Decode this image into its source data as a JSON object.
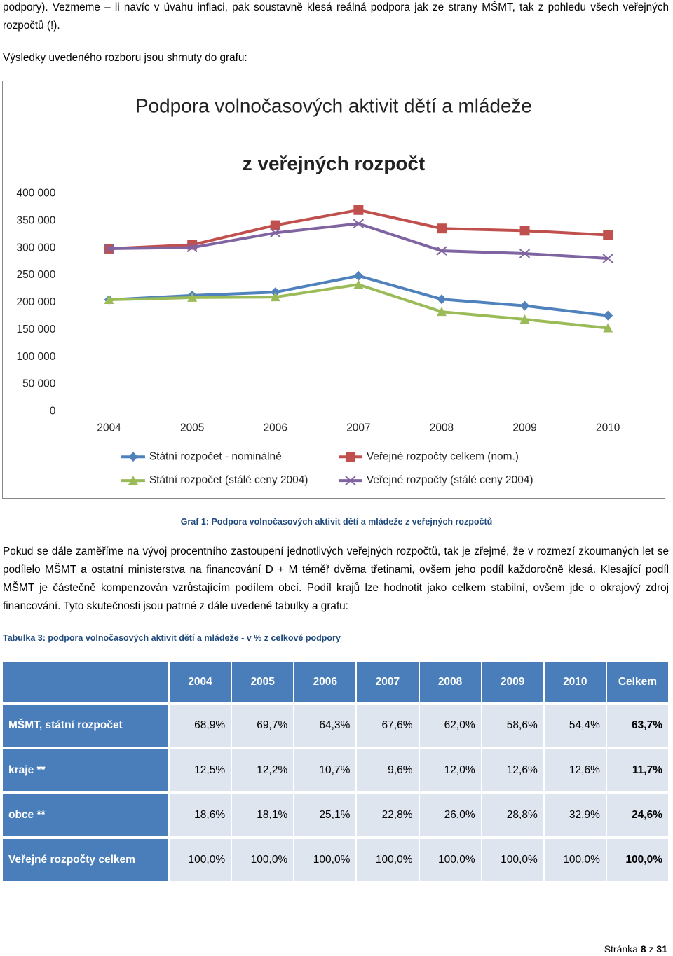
{
  "text": {
    "paragraph_1": "podpory). Vezmeme – li navíc v úvahu inflaci, pak soustavně klesá reálná podpora jak ze strany MŠMT, tak z pohledu všech veřejných rozpočtů (!).",
    "paragraph_2": "Výsledky uvedeného rozboru jsou shrnuty do grafu:",
    "chart_caption": "Graf 1: Podpora volnočasových aktivit dětí a mládeže z veřejných rozpočtů",
    "paragraph_3": "Pokud se dále zaměříme na vývoj procentního zastoupení jednotlivých veřejných rozpočtů, tak je zřejmé, že v rozmezí zkoumaných let se podílelo MŠMT a ostatní ministerstva na financování D + M téměř dvěma třetinami, ovšem jeho podíl každoročně klesá. Klesající podíl MŠMT je částečně kompenzován vzrůstajícím podílem obcí. Podíl krajů lze hodnotit jako celkem stabilní, ovšem jde o okrajový zdroj financování. Tyto skutečnosti jsou patrné z dále uvedené tabulky a grafu:",
    "table_caption": "Tabulka 3: podpora volnočasových aktivit dětí a mládeže - v % z celkové podpory"
  },
  "chart_data": {
    "type": "line",
    "title": "Podpora volnočasových aktivit dětí a mládeže",
    "subtitle": "z veřejných rozpočt",
    "categories": [
      "2004",
      "2005",
      "2006",
      "2007",
      "2008",
      "2009",
      "2010"
    ],
    "ylim": [
      0,
      400000
    ],
    "yticks": [
      0,
      {
        "value": 50000,
        "label": "50 000"
      },
      {
        "value": 100000,
        "label": "100 000"
      },
      {
        "value": 150000,
        "label": "150 000"
      },
      {
        "value": 200000,
        "label": "200 000"
      },
      {
        "value": 250000,
        "label": "250 000"
      },
      {
        "value": 300000,
        "label": "300 000"
      },
      {
        "value": 350000,
        "label": "350 000"
      },
      {
        "value": 400000,
        "label": "400 000"
      }
    ],
    "grid": false,
    "series": [
      {
        "name": "Státní rozpočet - nominálně",
        "color": "#4f81bd",
        "marker": "diamond",
        "values": [
          205000,
          213000,
          219000,
          249000,
          206000,
          194000,
          176000
        ]
      },
      {
        "name": "Veřejné rozpočty celkem (nom.)",
        "color": "#c0504d",
        "marker": "square",
        "values": [
          299000,
          306000,
          342000,
          370000,
          336000,
          332000,
          324000
        ]
      },
      {
        "name": "Státní rozpočet (stálé ceny 2004)",
        "color": "#9bbb59",
        "marker": "triangle",
        "values": [
          205000,
          209000,
          210000,
          233000,
          183000,
          169000,
          153000
        ]
      },
      {
        "name": "Veřejné rozpočty (stálé ceny 2004)",
        "color": "#8064a2",
        "marker": "x",
        "values": [
          299000,
          301000,
          328000,
          345000,
          295000,
          290000,
          281000
        ]
      }
    ]
  },
  "table": {
    "columns": [
      "2004",
      "2005",
      "2006",
      "2007",
      "2008",
      "2009",
      "2010",
      "Celkem"
    ],
    "rows": [
      {
        "label": "MŠMT, státní rozpočet",
        "cells": [
          "68,9%",
          "69,7%",
          "64,3%",
          "67,6%",
          "62,0%",
          "58,6%",
          "54,4%",
          "63,7%"
        ]
      },
      {
        "label": "kraje **",
        "cells": [
          "12,5%",
          "12,2%",
          "10,7%",
          "9,6%",
          "12,0%",
          "12,6%",
          "12,6%",
          "11,7%"
        ]
      },
      {
        "label": "obce **",
        "cells": [
          "18,6%",
          "18,1%",
          "25,1%",
          "22,8%",
          "26,0%",
          "28,8%",
          "32,9%",
          "24,6%"
        ]
      },
      {
        "label": "Veřejné rozpočty celkem",
        "cells": [
          "100,0%",
          "100,0%",
          "100,0%",
          "100,0%",
          "100,0%",
          "100,0%",
          "100,0%",
          "100,0%"
        ]
      }
    ]
  },
  "footer": {
    "label": "Stránka",
    "page": "8",
    "of": "z",
    "total": "31"
  }
}
